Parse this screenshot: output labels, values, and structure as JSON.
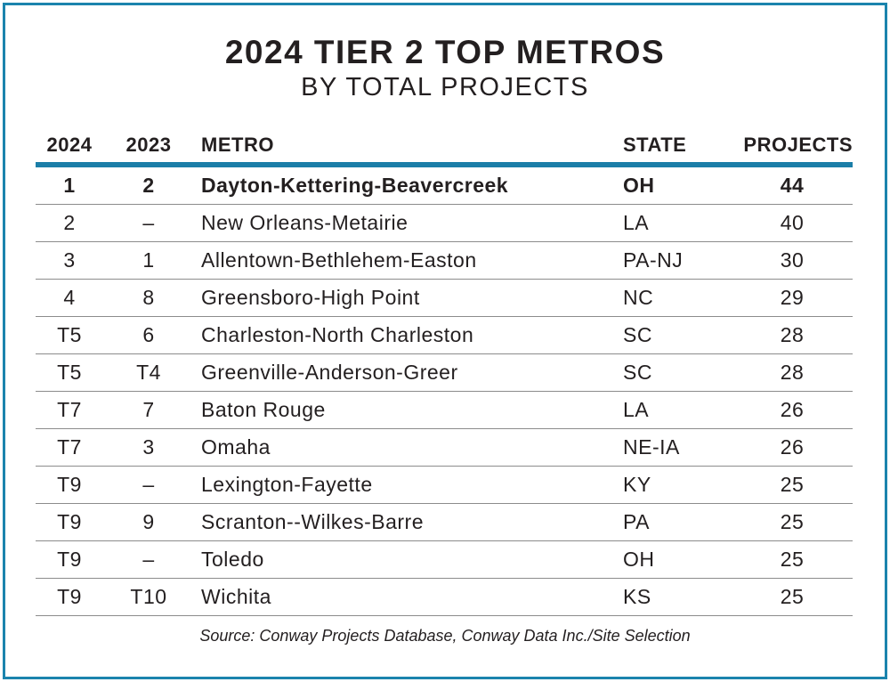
{
  "title": "2024 TIER 2 TOP METROS",
  "subtitle": "BY TOTAL PROJECTS",
  "colors": {
    "border": "#1b84ad",
    "header_rule": "#1b7ea8",
    "row_rule": "#8c8c8c",
    "text": "#231f20"
  },
  "table": {
    "headers": [
      "2024",
      "2023",
      "METRO",
      "STATE",
      "PROJECTS"
    ],
    "rows": [
      {
        "rank_2024": "1",
        "rank_2023": "2",
        "metro": "Dayton-Kettering-Beavercreek",
        "state": "OH",
        "projects": "44"
      },
      {
        "rank_2024": "2",
        "rank_2023": "–",
        "metro": "New Orleans-Metairie",
        "state": "LA",
        "projects": "40"
      },
      {
        "rank_2024": "3",
        "rank_2023": "1",
        "metro": "Allentown-Bethlehem-Easton",
        "state": "PA-NJ",
        "projects": "30"
      },
      {
        "rank_2024": "4",
        "rank_2023": "8",
        "metro": "Greensboro-High Point",
        "state": "NC",
        "projects": "29"
      },
      {
        "rank_2024": "T5",
        "rank_2023": "6",
        "metro": "Charleston-North Charleston",
        "state": "SC",
        "projects": "28"
      },
      {
        "rank_2024": "T5",
        "rank_2023": "T4",
        "metro": "Greenville-Anderson-Greer",
        "state": "SC",
        "projects": "28"
      },
      {
        "rank_2024": "T7",
        "rank_2023": "7",
        "metro": "Baton Rouge",
        "state": "LA",
        "projects": "26"
      },
      {
        "rank_2024": "T7",
        "rank_2023": "3",
        "metro": "Omaha",
        "state": "NE-IA",
        "projects": "26"
      },
      {
        "rank_2024": "T9",
        "rank_2023": "–",
        "metro": "Lexington-Fayette",
        "state": "KY",
        "projects": "25"
      },
      {
        "rank_2024": "T9",
        "rank_2023": "9",
        "metro": "Scranton--Wilkes-Barre",
        "state": "PA",
        "projects": "25"
      },
      {
        "rank_2024": "T9",
        "rank_2023": "–",
        "metro": "Toledo",
        "state": "OH",
        "projects": "25"
      },
      {
        "rank_2024": "T9",
        "rank_2023": "T10",
        "metro": "Wichita",
        "state": "KS",
        "projects": "25"
      }
    ]
  },
  "source": "Source: Conway Projects Database, Conway Data Inc./Site Selection"
}
